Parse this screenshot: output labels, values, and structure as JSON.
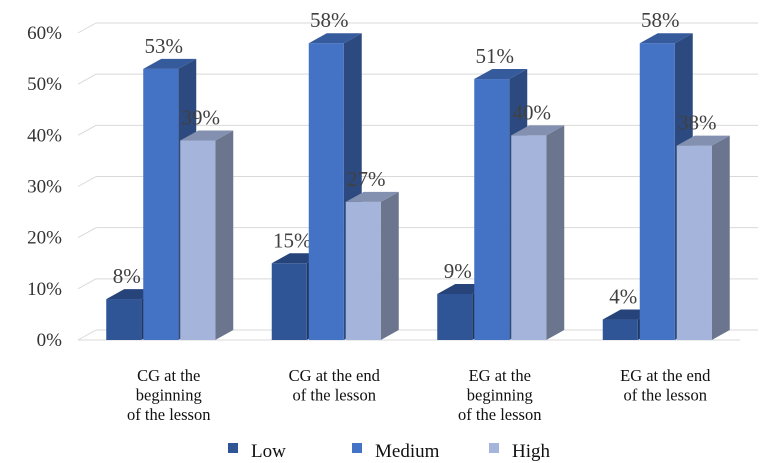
{
  "chart_data": {
    "type": "bar",
    "categories": [
      "CG at the beginning of the lesson",
      "CG at the end of the lesson",
      "EG at the beginning of the lesson",
      "EG at the end of the lesson"
    ],
    "category_lines": [
      [
        "CG at the",
        "beginning",
        "of the lesson"
      ],
      [
        "CG at the end",
        "of the lesson"
      ],
      [
        "EG at the",
        "beginning",
        "of the lesson"
      ],
      [
        "EG at the end",
        "of the lesson"
      ]
    ],
    "series": [
      {
        "name": "Low",
        "values": [
          8,
          15,
          9,
          4
        ],
        "labels": [
          "8%",
          "15%",
          "9%",
          "4%"
        ],
        "color": "#2F5597"
      },
      {
        "name": "Medium",
        "values": [
          53,
          58,
          51,
          58
        ],
        "labels": [
          "53%",
          "58%",
          "51%",
          "58%"
        ],
        "color": "#4472C4"
      },
      {
        "name": "High",
        "values": [
          39,
          27,
          40,
          38
        ],
        "labels": [
          "39%",
          "27%",
          "40%",
          "38%"
        ],
        "color": "#A5B4DB"
      }
    ],
    "y_ticks": [
      "0%",
      "10%",
      "20%",
      "30%",
      "40%",
      "50%",
      "60%"
    ],
    "ylim": [
      0,
      60
    ],
    "grid": true,
    "legend": "bottom",
    "style": "3d-clustered-column"
  }
}
